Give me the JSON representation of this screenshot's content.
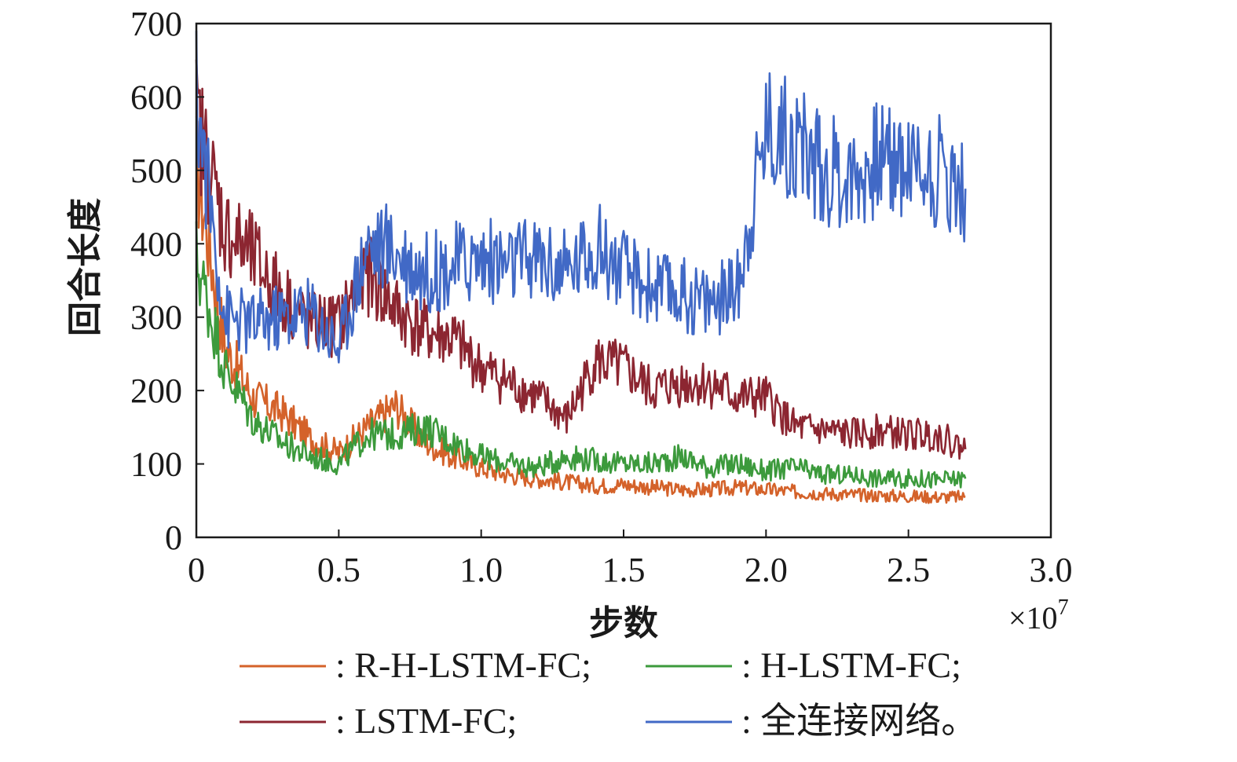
{
  "chart_data": {
    "type": "line",
    "title": "",
    "xlabel": "步数",
    "ylabel": "回合长度",
    "x_multiplier": "×10",
    "x_multiplier_exp": "7",
    "xlim": [
      0,
      3.0
    ],
    "ylim": [
      0,
      700
    ],
    "x_ticks": [
      "0",
      "0.5",
      "1.0",
      "1.5",
      "2.0",
      "2.5",
      "3.0"
    ],
    "y_ticks": [
      "0",
      "100",
      "200",
      "300",
      "400",
      "500",
      "600",
      "700"
    ],
    "grid": false,
    "legend_position": "bottom",
    "x": [
      0,
      0.1,
      0.2,
      0.3,
      0.4,
      0.5,
      0.6,
      0.7,
      0.8,
      0.9,
      1.0,
      1.1,
      1.2,
      1.3,
      1.4,
      1.5,
      1.6,
      1.7,
      1.8,
      1.9,
      2.0,
      2.1,
      2.2,
      2.3,
      2.4,
      2.5,
      2.6,
      2.7
    ],
    "series": [
      {
        "name": ": R-H-LSTM-FC;",
        "color": "#d4622a",
        "values": [
          510,
          260,
          190,
          170,
          135,
          115,
          150,
          180,
          130,
          110,
          95,
          85,
          80,
          75,
          70,
          72,
          68,
          65,
          65,
          68,
          65,
          62,
          60,
          58,
          57,
          56,
          55,
          55
        ]
      },
      {
        "name": ": H-LSTM-FC;",
        "color": "#3c9a3c",
        "values": [
          380,
          230,
          160,
          130,
          110,
          100,
          140,
          140,
          150,
          130,
          110,
          100,
          95,
          110,
          105,
          100,
          100,
          110,
          95,
          100,
          90,
          95,
          85,
          85,
          80,
          80,
          78,
          80
        ]
      },
      {
        "name": ": LSTM-FC;",
        "color": "#8c2631",
        "values": [
          570,
          420,
          380,
          330,
          290,
          290,
          360,
          310,
          280,
          270,
          230,
          210,
          190,
          160,
          240,
          230,
          200,
          210,
          210,
          190,
          190,
          150,
          145,
          140,
          145,
          140,
          140,
          120
        ]
      },
      {
        "name": ": 全连接网络。",
        "color": "#4169c6",
        "values": [
          600,
          300,
          290,
          300,
          310,
          260,
          400,
          390,
          360,
          370,
          380,
          370,
          380,
          360,
          400,
          360,
          340,
          330,
          320,
          340,
          560,
          540,
          500,
          490,
          520,
          510,
          500,
          475
        ]
      }
    ]
  }
}
